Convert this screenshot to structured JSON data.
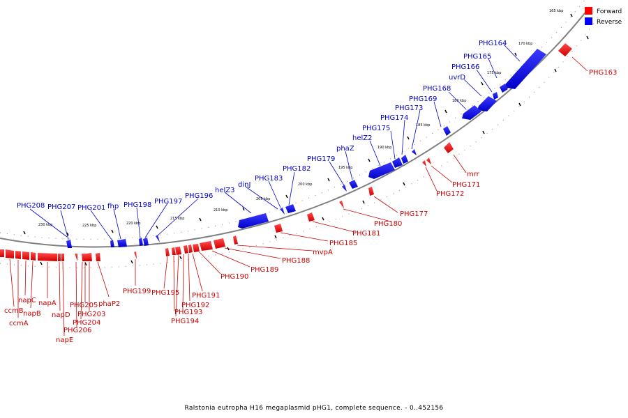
{
  "caption": "Ralstonia eutropha H16 megaplasmid pHG1, complete sequence. - 0..452156",
  "legend": [
    {
      "label": "Forward",
      "color": "#ff0000"
    },
    {
      "label": "Reverse",
      "color": "#0000ff"
    }
  ],
  "colors": {
    "forward": "#e00000",
    "reverse": "#0000dd",
    "backbone": "#808080",
    "label_forward": "#cc0000",
    "label_reverse": "#0000cc"
  },
  "kbp_ticks": [
    "165 kbp",
    "170 kbp",
    "175 kbp",
    "180 kbp",
    "185 kbp",
    "190 kbp",
    "195 kbp",
    "200 kbp",
    "205 kbp",
    "210 kbp",
    "215 kbp",
    "220 kbp",
    "225 kbp",
    "230 kbp"
  ],
  "reverse_genes": [
    "PHG164",
    "PHG165",
    "PHG166",
    "uvrD",
    "PHG168",
    "PHG169",
    "PHG173",
    "PHG174",
    "PHG175",
    "helZ2",
    "phaZ",
    "PHG179",
    "PHG182",
    "PHG183",
    "dinJ",
    "helZ3",
    "PHG196",
    "PHG197",
    "PHG198",
    "fhp",
    "PHG201",
    "PHG207",
    "PHG208"
  ],
  "forward_genes": [
    "PHG163",
    "mrr",
    "PHG171",
    "PHG172",
    "PHG177",
    "PHG180",
    "PHG181",
    "PHG185",
    "mvpA",
    "PHG188",
    "PHG189",
    "PHG190",
    "PHG191",
    "PHG192",
    "PHG193",
    "PHG194",
    "PHG195",
    "PHG199",
    "phaP2",
    "PHG203",
    "PHG205",
    "PHG204",
    "PHG206",
    "napE",
    "napD",
    "napA",
    "napB",
    "napC",
    "ccmB",
    "ccmA"
  ]
}
